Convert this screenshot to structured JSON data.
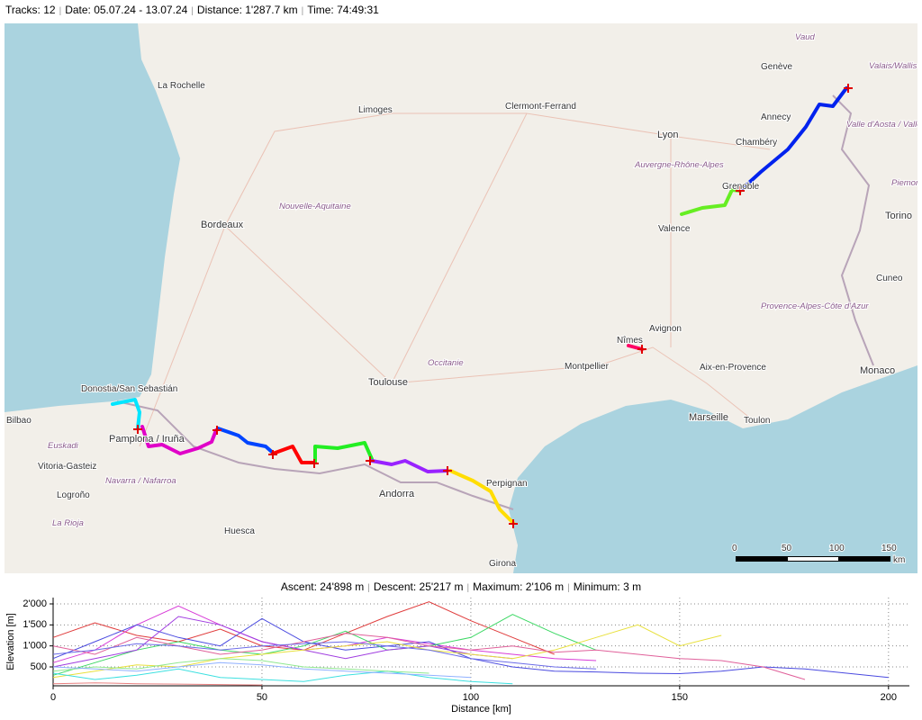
{
  "header": {
    "items": [
      "Tracks: 12",
      "Date: 05.07.24 - 13.07.24",
      "Distance: 1'287.7 km",
      "Time: 74:49:31"
    ]
  },
  "map": {
    "labels": [
      "La Rochelle",
      "Limoges",
      "Clermont-Ferrand",
      "Lyon",
      "Genève",
      "Annecy",
      "Chambéry",
      "Grenoble",
      "Valence",
      "Auvergne-Rhône-Alpes",
      "Nouvelle-Aquitaine",
      "Bordeaux",
      "Toulouse",
      "Occitanie",
      "Montpellier",
      "Nîmes",
      "Avignon",
      "Aix-en-Provence",
      "Marseille",
      "Toulon",
      "Provence-Alpes-Côte d'Azur",
      "Monaco",
      "Torino",
      "Cuneo",
      "Donostia/San Sebastián",
      "Bilbao",
      "Pamplona / Iruña",
      "Vitoria-Gasteiz",
      "Logroño",
      "Euskadi",
      "Navarra / Nafarroa",
      "La Rioja",
      "Huesca",
      "Andorra",
      "Perpignan",
      "Girona",
      "Valle d'Aosta / Vallée d'Aoste",
      "Vaud",
      "Valais/Wallis",
      "Piemonte"
    ],
    "scale": {
      "labels": [
        "0",
        "50",
        "100",
        "150",
        "km"
      ]
    }
  },
  "stats": {
    "items": [
      "Ascent: 24'898 m",
      "Descent: 25'217 m",
      "Maximum: 2'106 m",
      "Minimum: 3 m"
    ]
  },
  "chart_data": {
    "type": "line",
    "xlabel": "Distance [km]",
    "ylabel": "Elevation [m]",
    "xlim": [
      0,
      205
    ],
    "ylim": [
      50,
      2150
    ],
    "xticks": [
      0,
      50,
      100,
      150,
      200
    ],
    "yticks": [
      500,
      {
        "value": 1000,
        "label": "1'000"
      },
      {
        "value": 1500,
        "label": "1'500"
      },
      {
        "value": 2000,
        "label": "2'000"
      }
    ],
    "grid": true,
    "x": [
      0,
      10,
      20,
      30,
      40,
      50,
      60,
      70,
      80,
      90,
      100,
      110,
      120,
      130,
      140,
      150,
      160,
      170,
      180,
      190,
      200
    ],
    "series": [
      {
        "color": "#e03c3c",
        "values": [
          1200,
          1550,
          1250,
          1100,
          1400,
          1000,
          900,
          1300,
          1700,
          2050,
          1600,
          1200,
          800,
          null,
          null,
          null,
          null,
          null,
          null,
          null,
          null
        ]
      },
      {
        "color": "#d83cd8",
        "values": [
          600,
          900,
          1500,
          1950,
          1500,
          1100,
          900,
          1000,
          1200,
          1050,
          900,
          800,
          700,
          650,
          null,
          null,
          null,
          null,
          null,
          null,
          null
        ]
      },
      {
        "color": "#4a4ae0",
        "values": [
          700,
          1100,
          1500,
          1200,
          1000,
          1650,
          1100,
          900,
          1000,
          1100,
          700,
          500,
          400,
          380,
          350,
          340,
          400,
          500,
          450,
          350,
          250
        ]
      },
      {
        "color": "#3cd864",
        "values": [
          300,
          600,
          900,
          1100,
          900,
          800,
          1000,
          1350,
          900,
          1000,
          1200,
          1750,
          1300,
          900,
          null,
          null,
          null,
          null,
          null,
          null,
          null
        ]
      },
      {
        "color": "#a03ce0",
        "values": [
          500,
          700,
          900,
          1700,
          1500,
          1100,
          900,
          700,
          900,
          1000,
          800,
          700,
          null,
          null,
          null,
          null,
          null,
          null,
          null,
          null,
          null
        ]
      },
      {
        "color": "#e8e03c",
        "values": [
          250,
          400,
          550,
          500,
          700,
          800,
          900,
          1000,
          1100,
          900,
          800,
          700,
          900,
          1200,
          1500,
          1000,
          1250,
          null,
          null,
          null,
          null
        ]
      },
      {
        "color": "#3ce0e0",
        "values": [
          350,
          200,
          300,
          450,
          250,
          200,
          150,
          300,
          400,
          250,
          150,
          100,
          null,
          null,
          null,
          null,
          null,
          null,
          null,
          null,
          null
        ]
      },
      {
        "color": "#90e890",
        "values": [
          400,
          500,
          450,
          600,
          700,
          650,
          500,
          450,
          400,
          350,
          null,
          null,
          null,
          null,
          null,
          null,
          null,
          null,
          null,
          null,
          null
        ]
      },
      {
        "color": "#e0609a",
        "values": [
          1000,
          800,
          1200,
          1000,
          800,
          900,
          1100,
          1300,
          1200,
          1000,
          900,
          1000,
          850,
          900,
          800,
          700,
          650,
          500,
          200,
          null,
          null
        ]
      },
      {
        "color": "#6c6ce8",
        "values": [
          800,
          900,
          1050,
          1000,
          900,
          1000,
          1050,
          1100,
          1000,
          900,
          700,
          600,
          500,
          450,
          null,
          null,
          null,
          null,
          null,
          null,
          null
        ]
      },
      {
        "color": "#e88080",
        "values": [
          100,
          120,
          100,
          90,
          80,
          70,
          null,
          null,
          null,
          null,
          null,
          null,
          null,
          null,
          null,
          null,
          null,
          null,
          null,
          null,
          null
        ]
      },
      {
        "color": "#8fb0ff",
        "values": [
          500,
          450,
          400,
          500,
          600,
          550,
          450,
          400,
          350,
          300,
          250,
          null,
          null,
          null,
          null,
          null,
          null,
          null,
          null,
          null,
          null
        ]
      }
    ]
  }
}
